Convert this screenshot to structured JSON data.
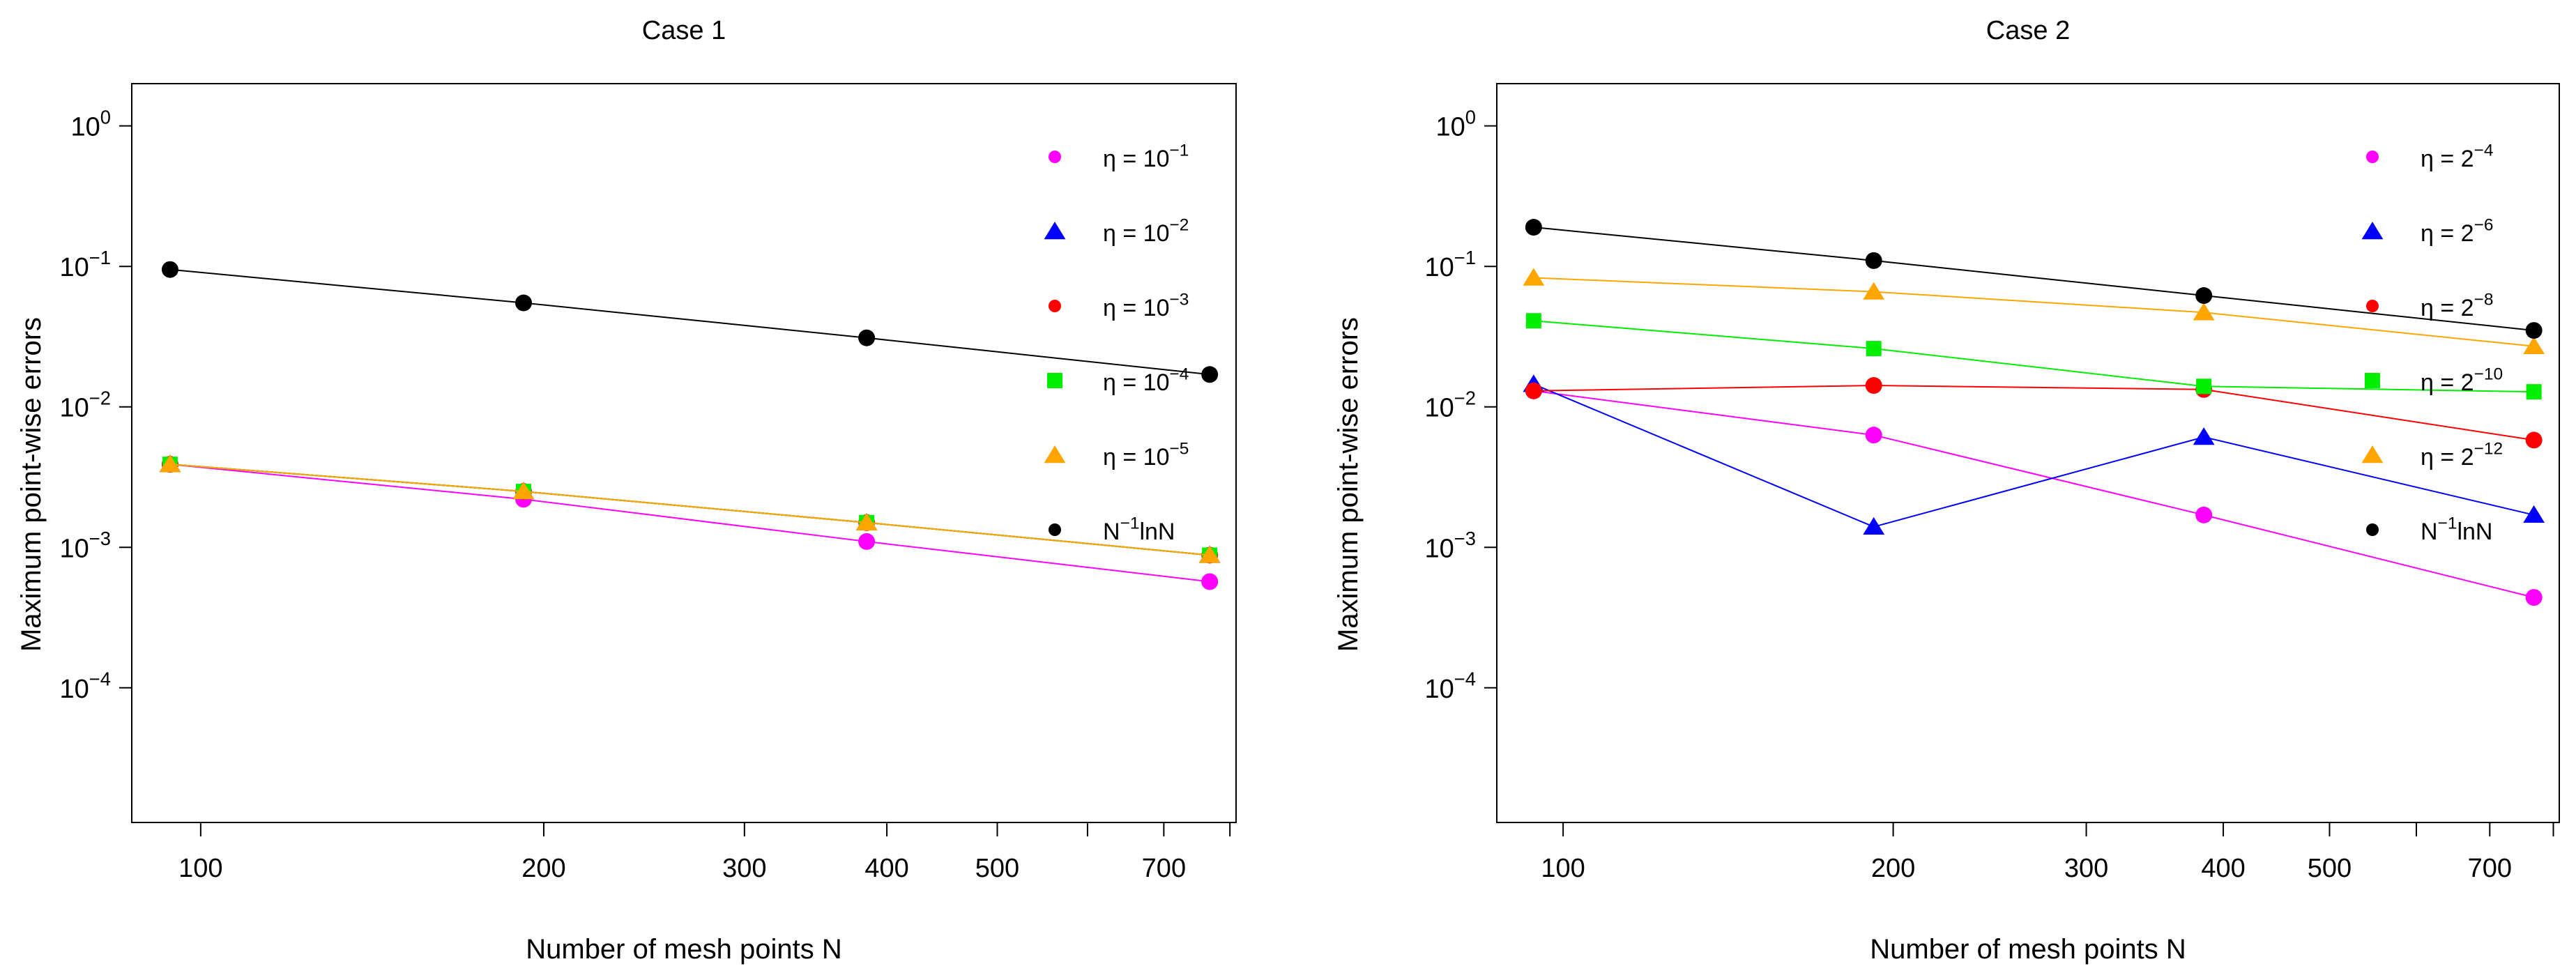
{
  "figure": {
    "background": "#ffffff"
  },
  "chart_data": [
    {
      "type": "line",
      "scale": {
        "x": "log",
        "y": "log"
      },
      "title": "Case 1",
      "xlabel": "Number of mesh points N",
      "ylabel": "Maximum point-wise errors",
      "xlim": [
        87,
        810
      ],
      "ylim": [
        1.1e-05,
        2.0
      ],
      "xticks": [
        100,
        200,
        300,
        400,
        500,
        600,
        700,
        800
      ],
      "xtick_labels": [
        "100",
        "200",
        "300",
        "400",
        "500",
        "",
        "700",
        ""
      ],
      "yticks": [
        {
          "value": 1,
          "base": "10",
          "exp": "0"
        },
        {
          "value": 0.1,
          "base": "10",
          "exp": "−1"
        },
        {
          "value": 0.01,
          "base": "10",
          "exp": "−2"
        },
        {
          "value": 0.001,
          "base": "10",
          "exp": "−3"
        },
        {
          "value": 0.0001,
          "base": "10",
          "exp": "−4"
        }
      ],
      "x": [
        94,
        192,
        384,
        768
      ],
      "legend_position": "top-right",
      "series": [
        {
          "name": "η = 10−1",
          "label_base": "η = 10",
          "label_exp": "−1",
          "color": "#ff00ff",
          "marker": "circle",
          "values": [
            0.0039,
            0.0022,
            0.0011,
            0.00057
          ]
        },
        {
          "name": "η = 10−2",
          "label_base": "η = 10",
          "label_exp": "−2",
          "color": "#0000ff",
          "marker": "triangle",
          "values": [
            0.0039,
            0.0025,
            0.0015,
            0.00088
          ]
        },
        {
          "name": "η = 10−3",
          "label_base": "η = 10",
          "label_exp": "−3",
          "color": "#ff0000",
          "marker": "circle",
          "values": [
            0.0039,
            0.0025,
            0.0015,
            0.00088
          ]
        },
        {
          "name": "η = 10−4",
          "label_base": "η = 10",
          "label_exp": "−4",
          "color": "#00ee00",
          "marker": "square",
          "values": [
            0.0039,
            0.0025,
            0.0015,
            0.00088
          ]
        },
        {
          "name": "η = 10−5",
          "label_base": "η = 10",
          "label_exp": "−5",
          "color": "#ffa500",
          "marker": "triangle",
          "values": [
            0.0039,
            0.0025,
            0.0015,
            0.00088
          ]
        },
        {
          "name": "N−1lnN",
          "label_base": "N",
          "label_exp": "−1",
          "label_tail": "lnN",
          "color": "#000000",
          "marker": "circle",
          "values": [
            0.095,
            0.055,
            0.031,
            0.017
          ]
        }
      ]
    },
    {
      "type": "line",
      "scale": {
        "x": "log",
        "y": "log"
      },
      "title": "Case 2",
      "xlabel": "Number of mesh points N",
      "ylabel": "Maximum point-wise errors",
      "xlim": [
        87,
        810
      ],
      "ylim": [
        1.1e-05,
        2.0
      ],
      "xticks": [
        100,
        200,
        300,
        400,
        500,
        600,
        700,
        800
      ],
      "xtick_labels": [
        "100",
        "200",
        "300",
        "400",
        "500",
        "",
        "700",
        ""
      ],
      "yticks": [
        {
          "value": 1,
          "base": "10",
          "exp": "0"
        },
        {
          "value": 0.1,
          "base": "10",
          "exp": "−1"
        },
        {
          "value": 0.01,
          "base": "10",
          "exp": "−2"
        },
        {
          "value": 0.001,
          "base": "10",
          "exp": "−3"
        },
        {
          "value": 0.0001,
          "base": "10",
          "exp": "−4"
        }
      ],
      "x": [
        94,
        192,
        384,
        768
      ],
      "legend_position": "top-right",
      "series": [
        {
          "name": "η = 2−4",
          "label_base": "η = 2",
          "label_exp": "−4",
          "color": "#ff00ff",
          "marker": "circle",
          "values": [
            0.013,
            0.0063,
            0.0017,
            0.00044
          ]
        },
        {
          "name": "η = 2−6",
          "label_base": "η = 2",
          "label_exp": "−6",
          "color": "#0000ff",
          "marker": "triangle",
          "values": [
            0.0145,
            0.0014,
            0.0061,
            0.0017
          ]
        },
        {
          "name": "η = 2−8",
          "label_base": "η = 2",
          "label_exp": "−8",
          "color": "#ff0000",
          "marker": "circle",
          "values": [
            0.013,
            0.0142,
            0.0133,
            0.0058
          ]
        },
        {
          "name": "η = 2−10",
          "label_base": "η = 2",
          "label_exp": "−10",
          "color": "#00ee00",
          "marker": "square",
          "values": [
            0.041,
            0.026,
            0.014,
            0.0128
          ]
        },
        {
          "name": "η = 2−12",
          "label_base": "η = 2",
          "label_exp": "−12",
          "color": "#ffa500",
          "marker": "triangle",
          "values": [
            0.083,
            0.066,
            0.047,
            0.027
          ]
        },
        {
          "name": "N−1lnN",
          "label_base": "N",
          "label_exp": "−1",
          "label_tail": "lnN",
          "color": "#000000",
          "marker": "circle",
          "values": [
            0.19,
            0.11,
            0.062,
            0.035
          ]
        }
      ]
    }
  ]
}
